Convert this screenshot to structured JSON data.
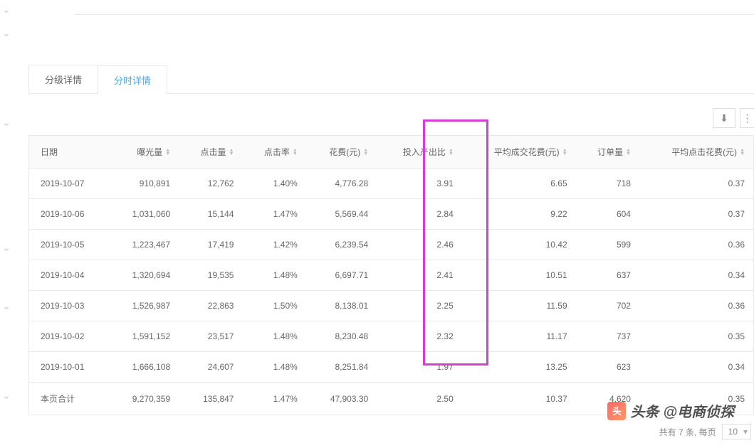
{
  "tabs": {
    "level": "分级详情",
    "time": "分时详情"
  },
  "activeTab": "time",
  "toolbar": {
    "download": "⬇",
    "settings": "⚙"
  },
  "table": {
    "columns": [
      {
        "key": "date",
        "label": "日期",
        "sortable": false
      },
      {
        "key": "exp",
        "label": "曝光量",
        "sortable": true
      },
      {
        "key": "click",
        "label": "点击量",
        "sortable": true
      },
      {
        "key": "ctr",
        "label": "点击率",
        "sortable": true
      },
      {
        "key": "cost",
        "label": "花费(元)",
        "sortable": true
      },
      {
        "key": "roi",
        "label": "投入产出比",
        "sortable": true
      },
      {
        "key": "acost",
        "label": "平均成交花费(元)",
        "sortable": true
      },
      {
        "key": "ord",
        "label": "订单量",
        "sortable": true
      },
      {
        "key": "cpc",
        "label": "平均点击花费(元)",
        "sortable": true
      }
    ],
    "rows": [
      {
        "date": "2019-10-07",
        "exp": "910,891",
        "click": "12,762",
        "ctr": "1.40%",
        "cost": "4,776.28",
        "roi": "3.91",
        "acost": "6.65",
        "ord": "718",
        "cpc": "0.37"
      },
      {
        "date": "2019-10-06",
        "exp": "1,031,060",
        "click": "15,144",
        "ctr": "1.47%",
        "cost": "5,569.44",
        "roi": "2.84",
        "acost": "9.22",
        "ord": "604",
        "cpc": "0.37"
      },
      {
        "date": "2019-10-05",
        "exp": "1,223,467",
        "click": "17,419",
        "ctr": "1.42%",
        "cost": "6,239.54",
        "roi": "2.46",
        "acost": "10.42",
        "ord": "599",
        "cpc": "0.36"
      },
      {
        "date": "2019-10-04",
        "exp": "1,320,694",
        "click": "19,535",
        "ctr": "1.48%",
        "cost": "6,697.71",
        "roi": "2.41",
        "acost": "10.51",
        "ord": "637",
        "cpc": "0.34"
      },
      {
        "date": "2019-10-03",
        "exp": "1,526,987",
        "click": "22,863",
        "ctr": "1.50%",
        "cost": "8,138.01",
        "roi": "2.25",
        "acost": "11.59",
        "ord": "702",
        "cpc": "0.36"
      },
      {
        "date": "2019-10-02",
        "exp": "1,591,152",
        "click": "23,517",
        "ctr": "1.48%",
        "cost": "8,230.48",
        "roi": "2.32",
        "acost": "11.17",
        "ord": "737",
        "cpc": "0.35"
      },
      {
        "date": "2019-10-01",
        "exp": "1,666,108",
        "click": "24,607",
        "ctr": "1.48%",
        "cost": "8,251.84",
        "roi": "1.97",
        "acost": "13.25",
        "ord": "623",
        "cpc": "0.34"
      }
    ],
    "total": {
      "date": "本页合计",
      "exp": "9,270,359",
      "click": "135,847",
      "ctr": "1.47%",
      "cost": "47,903.30",
      "roi": "2.50",
      "acost": "10.37",
      "ord": "4,620",
      "cpc": "0.35"
    }
  },
  "highlight": {
    "color": "#d63cd6"
  },
  "pagination": {
    "totalText": "共有 7 条, 每页",
    "pageSize": "10"
  },
  "watermark": {
    "prefix": "头条",
    "name": "@电商侦探"
  },
  "leftArrows": {
    "count": 6,
    "positions": [
      5,
      38,
      164,
      340,
      422,
      548
    ]
  }
}
